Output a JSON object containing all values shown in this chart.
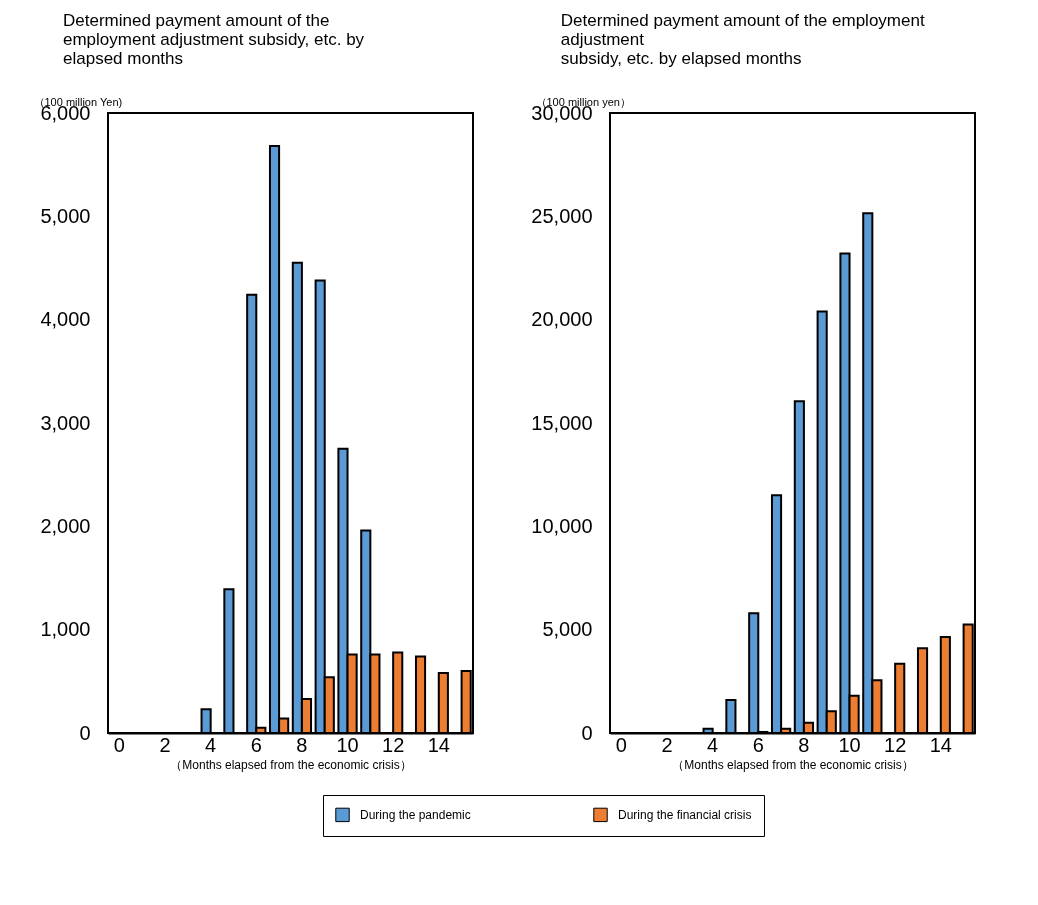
{
  "chart_data": [
    {
      "type": "bar",
      "title": "Determined payment amount of the\nemployment adjustment subsidy, etc. by\nelapsed months",
      "ylabel": "（100 million Yen)",
      "xlabel": "（Months elapsed from the economic crisis）",
      "categories": [
        "0",
        null,
        "2",
        null,
        "4",
        null,
        "6",
        null,
        "8",
        null,
        "10",
        null,
        "12",
        null,
        "14",
        null
      ],
      "ylim": [
        0,
        6000
      ],
      "yticks": [
        {
          "value": 0,
          "label": "0"
        },
        {
          "value": 1000,
          "label": "1,000"
        },
        {
          "value": 2000,
          "label": "2,000"
        },
        {
          "value": 3000,
          "label": "3,000"
        },
        {
          "value": 4000,
          "label": "4,000"
        },
        {
          "value": 5000,
          "label": "5,000"
        },
        {
          "value": 6000,
          "label": "6,000"
        }
      ],
      "grid": false,
      "legend": "bottom",
      "series": [
        {
          "name": "During the pandemic",
          "color": "#5b9bd5",
          "values": [
            0,
            0,
            0,
            0,
            230,
            1390,
            4240,
            5680,
            4550,
            4380,
            2750,
            1960,
            null,
            null,
            null,
            null
          ]
        },
        {
          "name": "During the financial crisis",
          "color": "#ed7d31",
          "values": [
            0,
            0,
            0,
            0,
            0,
            0,
            50,
            140,
            330,
            540,
            760,
            760,
            780,
            740,
            580,
            600
          ]
        }
      ]
    },
    {
      "type": "bar",
      "title": "Determined payment amount of the employment\nadjustment\nsubsidy, etc. by elapsed months",
      "ylabel": "（100 million yen）",
      "xlabel": "（Months elapsed from the economic crisis）",
      "categories": [
        "0",
        null,
        "2",
        null,
        "4",
        null,
        "6",
        null,
        "8",
        null,
        "10",
        null,
        "12",
        null,
        "14",
        null
      ],
      "ylim": [
        0,
        30000
      ],
      "yticks": [
        {
          "value": 0,
          "label": "0"
        },
        {
          "value": 5000,
          "label": "5,000"
        },
        {
          "value": 10000,
          "label": "10,000"
        },
        {
          "value": 15000,
          "label": "15,000"
        },
        {
          "value": 20000,
          "label": "20,000"
        },
        {
          "value": 25000,
          "label": "25,000"
        },
        {
          "value": 30000,
          "label": "30,000"
        }
      ],
      "grid": false,
      "series": [
        {
          "color": "#5b9bd5",
          "values": [
            0,
            0,
            0,
            0,
            200,
            1600,
            5800,
            11500,
            16050,
            20400,
            23200,
            25150,
            null,
            null,
            null,
            null
          ]
        },
        {
          "color": "#ed7d31",
          "values": [
            0,
            0,
            0,
            0,
            0,
            0,
            50,
            200,
            500,
            1050,
            1800,
            2550,
            3350,
            4100,
            4650,
            5250
          ]
        }
      ]
    }
  ]
}
